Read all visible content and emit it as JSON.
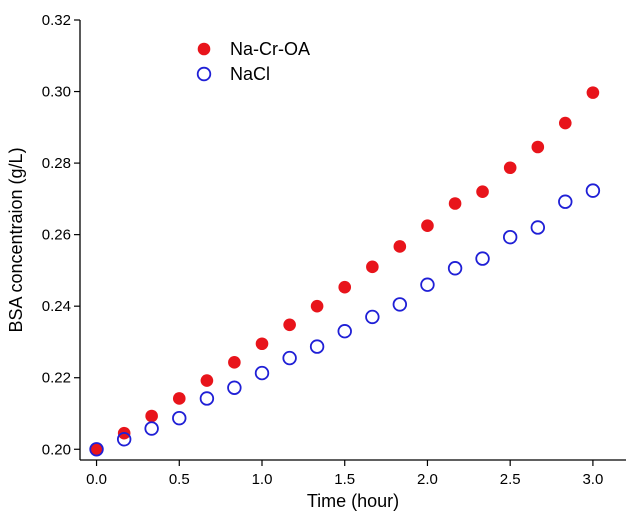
{
  "chart_data": {
    "type": "scatter",
    "title": "",
    "xlabel": "Time (hour)",
    "ylabel": "BSA concentraion (g/L)",
    "xlim": [
      -0.1,
      3.2
    ],
    "ylim": [
      0.197,
      0.32
    ],
    "xticks": [
      0.0,
      0.5,
      1.0,
      1.5,
      2.0,
      2.5,
      3.0
    ],
    "xtick_labels": [
      "0.0",
      "0.5",
      "1.0",
      "1.5",
      "2.0",
      "2.5",
      "3.0"
    ],
    "yticks": [
      0.2,
      0.22,
      0.24,
      0.26,
      0.28,
      0.3,
      0.32
    ],
    "ytick_labels": [
      "0.20",
      "0.22",
      "0.24",
      "0.26",
      "0.28",
      "0.30",
      "0.32"
    ],
    "grid": false,
    "legend_position": "top-left",
    "series": [
      {
        "name": "Na-Cr-OA",
        "marker": "filled-circle",
        "color": "#e8141b",
        "x": [
          0.0,
          0.167,
          0.333,
          0.5,
          0.667,
          0.833,
          1.0,
          1.167,
          1.333,
          1.5,
          1.667,
          1.833,
          2.0,
          2.167,
          2.333,
          2.5,
          2.667,
          2.833,
          3.0
        ],
        "y": [
          0.2,
          0.2045,
          0.2093,
          0.2142,
          0.2192,
          0.2243,
          0.2295,
          0.2348,
          0.24,
          0.2453,
          0.251,
          0.2567,
          0.2625,
          0.2687,
          0.272,
          0.2787,
          0.2845,
          0.2912,
          0.2997
        ]
      },
      {
        "name": "NaCl",
        "marker": "open-circle",
        "color": "#1f1fd6",
        "x": [
          0.0,
          0.167,
          0.333,
          0.5,
          0.667,
          0.833,
          1.0,
          1.167,
          1.333,
          1.5,
          1.667,
          1.833,
          2.0,
          2.167,
          2.333,
          2.5,
          2.667,
          2.833,
          3.0
        ],
        "y": [
          0.2,
          0.2028,
          0.2058,
          0.2087,
          0.2142,
          0.2172,
          0.2213,
          0.2255,
          0.2287,
          0.233,
          0.237,
          0.2405,
          0.246,
          0.2506,
          0.2533,
          0.2593,
          0.262,
          0.2692,
          0.2723
        ]
      }
    ]
  }
}
